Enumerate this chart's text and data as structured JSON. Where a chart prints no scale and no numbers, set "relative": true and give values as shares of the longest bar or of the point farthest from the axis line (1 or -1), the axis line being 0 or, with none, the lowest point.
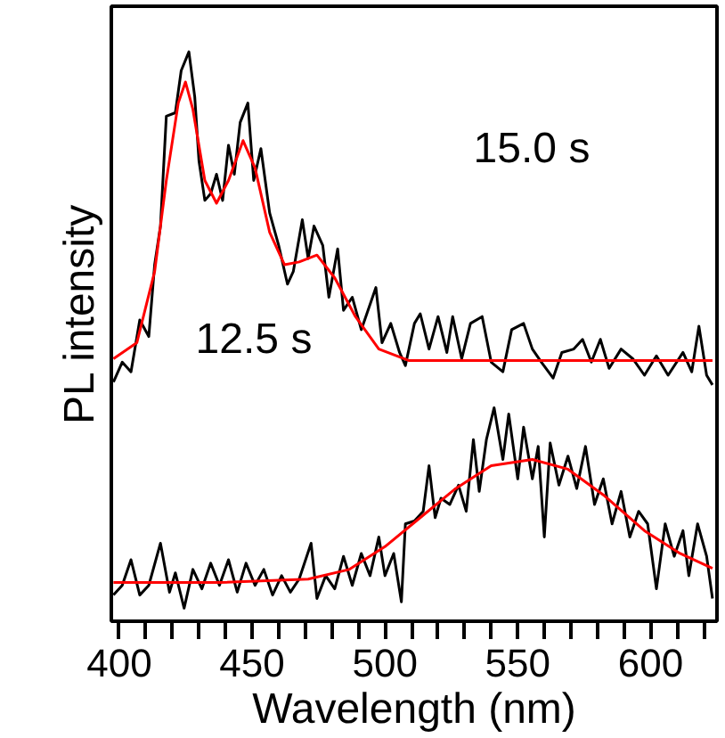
{
  "chart_data": {
    "type": "line",
    "xlabel": "Wavelength (nm)",
    "ylabel": "PL intensity",
    "relative": true,
    "grid": false,
    "tick_labels": "x",
    "marker": "none",
    "line_style": "solid",
    "xlim": [
      397,
      625
    ],
    "xticks": [
      400,
      {
        "value": 410,
        "label": null
      },
      {
        "value": 420,
        "label": null
      },
      {
        "value": 430,
        "label": null
      },
      {
        "value": 440,
        "label": null
      },
      450,
      {
        "value": 460,
        "label": null
      },
      {
        "value": 470,
        "label": null
      },
      {
        "value": 480,
        "label": null
      },
      {
        "value": 490,
        "label": null
      },
      500,
      {
        "value": 510,
        "label": null
      },
      {
        "value": 520,
        "label": null
      },
      {
        "value": 530,
        "label": null
      },
      {
        "value": 540,
        "label": null
      },
      550,
      {
        "value": 560,
        "label": null
      },
      {
        "value": 570,
        "label": null
      },
      {
        "value": 580,
        "label": null
      },
      {
        "value": 590,
        "label": null
      },
      600,
      {
        "value": 610,
        "label": null
      },
      {
        "value": 620,
        "label": null
      }
    ],
    "annotations": [
      "15.0 s",
      "12.5 s"
    ],
    "series": [
      {
        "color": "#000000",
        "x": [
          397.8,
          401.1,
          404.4,
          407.7,
          411.1,
          413.3,
          415.5,
          417.7,
          421.1,
          423.3,
          426.2,
          428.4,
          430.0,
          432.2,
          434.4,
          436.6,
          438.9,
          441.1,
          443.3,
          445.5,
          448.4,
          450.6,
          453.3,
          456.6,
          460.0,
          463.3,
          465.5,
          468.9,
          471.1,
          473.3,
          476.6,
          478.9,
          482.2,
          484.4,
          487.7,
          491.1,
          496.6,
          498.9,
          502.2,
          505.5,
          507.7,
          511.1,
          513.3,
          516.6,
          520.0,
          523.3,
          525.5,
          528.9,
          532.2,
          536.6,
          540.0,
          544.4,
          547.7,
          552.2,
          555.5,
          558.9,
          563.3,
          566.6,
          571.1,
          574.4,
          577.7,
          581.1,
          584.4,
          588.9,
          593.3,
          597.7,
          602.2,
          606.6,
          612.2,
          615.5,
          618.2,
          621.1,
          623.3
        ],
        "values": [
          0.42,
          0.455,
          0.438,
          0.529,
          0.5,
          0.626,
          0.694,
          0.887,
          0.893,
          0.967,
          1.0,
          0.921,
          0.808,
          0.739,
          0.751,
          0.785,
          0.739,
          0.836,
          0.785,
          0.876,
          0.91,
          0.774,
          0.83,
          0.717,
          0.66,
          0.592,
          0.614,
          0.705,
          0.637,
          0.694,
          0.66,
          0.569,
          0.654,
          0.546,
          0.569,
          0.512,
          0.586,
          0.489,
          0.523,
          0.472,
          0.449,
          0.523,
          0.54,
          0.478,
          0.535,
          0.472,
          0.535,
          0.461,
          0.523,
          0.535,
          0.455,
          0.438,
          0.512,
          0.523,
          0.478,
          0.455,
          0.427,
          0.472,
          0.478,
          0.495,
          0.455,
          0.495,
          0.444,
          0.478,
          0.461,
          0.432,
          0.466,
          0.432,
          0.472,
          0.438,
          0.518,
          0.432,
          0.415
        ]
      },
      {
        "color": "#ff0000",
        "x": [
          397.8,
          406.6,
          413.3,
          417.7,
          422.2,
          424.9,
          427.7,
          432.2,
          436.6,
          441.1,
          446.6,
          451.1,
          456.6,
          462.2,
          467.7,
          474.4,
          481.1,
          488.9,
          497.7,
          508.9,
          623.3
        ],
        "values": [
          0.461,
          0.489,
          0.614,
          0.774,
          0.91,
          0.947,
          0.899,
          0.774,
          0.734,
          0.774,
          0.844,
          0.796,
          0.683,
          0.626,
          0.631,
          0.643,
          0.603,
          0.535,
          0.478,
          0.458,
          0.458
        ]
      },
      {
        "color": "#000000",
        "x": [
          397.8,
          401.1,
          404.4,
          407.7,
          411.1,
          415.5,
          418.9,
          421.1,
          424.4,
          427.7,
          431.1,
          434.4,
          437.7,
          441.1,
          444.4,
          447.7,
          451.1,
          454.4,
          457.7,
          461.1,
          464.4,
          467.7,
          472.2,
          474.4,
          477.7,
          481.1,
          484.4,
          487.7,
          491.1,
          494.4,
          497.7,
          500.0,
          503.3,
          506.2,
          507.7,
          511.1,
          514.4,
          516.6,
          518.9,
          521.1,
          524.4,
          527.7,
          530.6,
          533.3,
          535.5,
          538.2,
          541.1,
          544.4,
          546.6,
          550.0,
          552.2,
          555.5,
          557.7,
          560.0,
          562.2,
          565.5,
          568.9,
          572.2,
          575.5,
          578.9,
          582.2,
          585.5,
          588.9,
          592.2,
          595.5,
          598.9,
          602.2,
          605.5,
          608.9,
          612.2,
          614.4,
          617.7,
          621.1,
          623.3
        ],
        "values": [
          0.046,
          0.063,
          0.108,
          0.046,
          0.063,
          0.137,
          0.051,
          0.085,
          0.023,
          0.091,
          0.057,
          0.102,
          0.063,
          0.108,
          0.051,
          0.102,
          0.063,
          0.091,
          0.046,
          0.08,
          0.051,
          0.074,
          0.137,
          0.04,
          0.08,
          0.057,
          0.114,
          0.063,
          0.119,
          0.08,
          0.148,
          0.08,
          0.119,
          0.034,
          0.171,
          0.176,
          0.193,
          0.273,
          0.182,
          0.216,
          0.205,
          0.239,
          0.193,
          0.319,
          0.228,
          0.319,
          0.375,
          0.284,
          0.364,
          0.25,
          0.341,
          0.25,
          0.307,
          0.148,
          0.313,
          0.239,
          0.29,
          0.233,
          0.307,
          0.205,
          0.25,
          0.171,
          0.228,
          0.148,
          0.193,
          0.171,
          0.057,
          0.171,
          0.114,
          0.159,
          0.08,
          0.171,
          0.114,
          0.04
        ]
      },
      {
        "color": "#ff0000",
        "x": [
          397.8,
          437.7,
          471.1,
          486.6,
          500.0,
          513.3,
          526.6,
          540.0,
          555.5,
          568.9,
          582.2,
          597.7,
          611.1,
          623.3
        ],
        "values": [
          0.068,
          0.068,
          0.074,
          0.091,
          0.131,
          0.182,
          0.233,
          0.273,
          0.284,
          0.267,
          0.222,
          0.159,
          0.119,
          0.093
        ]
      }
    ]
  }
}
